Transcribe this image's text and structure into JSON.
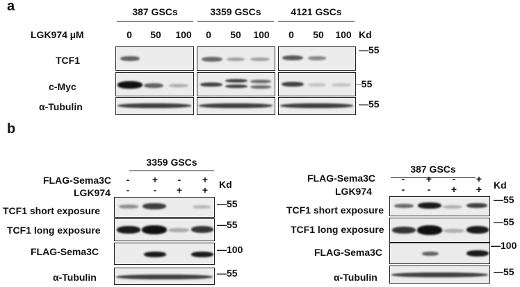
{
  "panel_a": {
    "panel_label": "a",
    "treatment_label": "LGK974 µM",
    "groups": [
      {
        "name": "387 GSCs",
        "doses": [
          "0",
          "50",
          "100"
        ]
      },
      {
        "name": "3359 GSCs",
        "doses": [
          "0",
          "50",
          "100"
        ]
      },
      {
        "name": "4121 GSCs",
        "doses": [
          "0",
          "50",
          "100"
        ]
      }
    ],
    "kd_header": "Kd",
    "rows": [
      {
        "label": "TCF1",
        "marker": "55"
      },
      {
        "label": "c-Myc",
        "marker": "55"
      },
      {
        "label": "α-Tubulin",
        "marker": "55"
      }
    ]
  },
  "panel_b": {
    "panel_label": "b",
    "blots": [
      {
        "group": "3359 GSCs",
        "condition_labels": [
          "FLAG-Sema3C",
          "LGK974"
        ],
        "flag_signs": [
          "-",
          "+",
          "-",
          "+"
        ],
        "lgk_signs": [
          "-",
          "-",
          "+",
          "+"
        ],
        "kd_header": "Kd",
        "rows": [
          {
            "label": "TCF1 short exposure",
            "marker": "55"
          },
          {
            "label": "TCF1 long exposure",
            "marker": "55"
          },
          {
            "label": "FLAG-Sema3C",
            "marker": "100"
          },
          {
            "label": "α-Tubulin",
            "marker": "55"
          }
        ]
      },
      {
        "group": "387 GSCs",
        "condition_labels": [
          "FLAG-Sema3C",
          "LGK974"
        ],
        "flag_signs": [
          "-",
          "+",
          "-",
          "+"
        ],
        "lgk_signs": [
          "-",
          "-",
          "+",
          "+"
        ],
        "kd_header": "Kd",
        "rows": [
          {
            "label": "TCF1 short exposure",
            "marker": "55"
          },
          {
            "label": "TCF1 long exposure",
            "marker": "55"
          },
          {
            "label": "FLAG-Sema3C",
            "marker": "100"
          },
          {
            "label": "α-Tubulin",
            "marker": "55"
          }
        ]
      }
    ]
  },
  "colors": {
    "band": "#1a1a1a",
    "blot_bg": "#ececec",
    "border": "#222222"
  }
}
